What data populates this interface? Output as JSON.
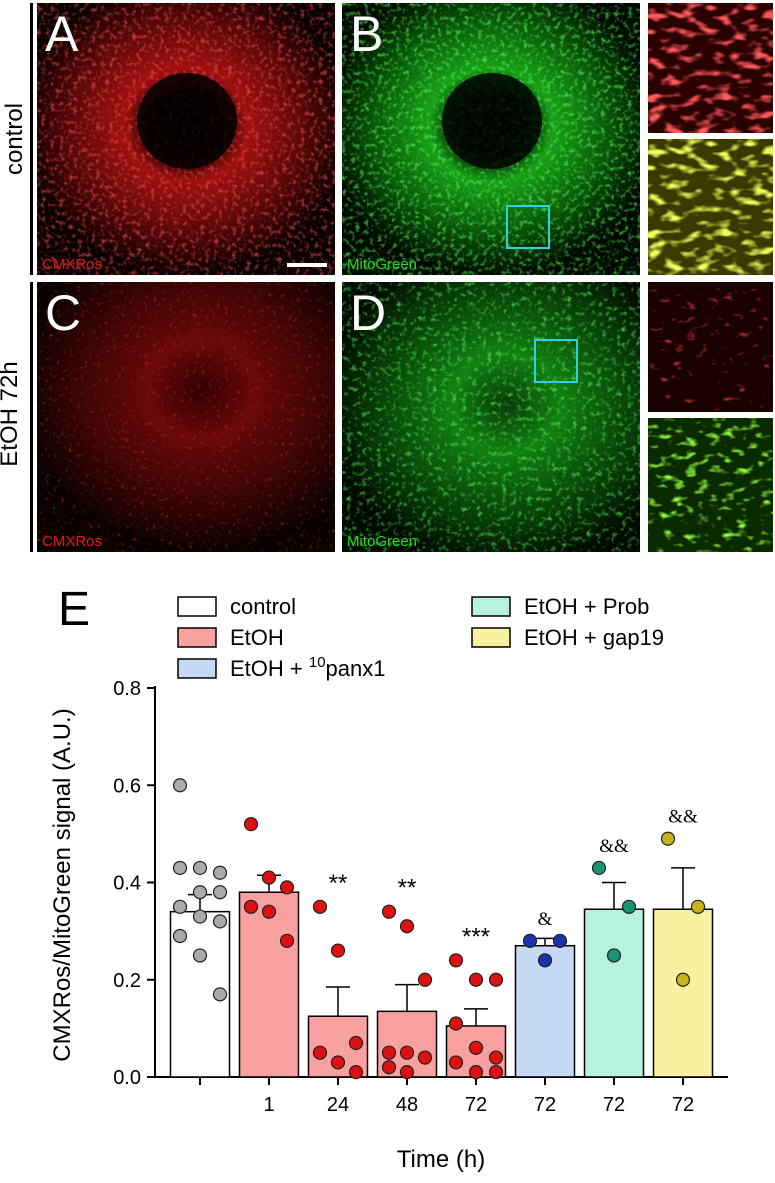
{
  "panels": [
    {
      "letter": "A",
      "channel": "CMXRos",
      "color": "#e01818"
    },
    {
      "letter": "B",
      "channel": "MitoGreen",
      "color": "#22dd22"
    },
    {
      "letter": "C",
      "channel": "CMXRos",
      "color": "#e01818"
    },
    {
      "letter": "D",
      "channel": "MitoGreen",
      "color": "#22dd22"
    }
  ],
  "row_labels": {
    "top": "control",
    "bottom": "EtOH 72h"
  },
  "chart_data": {
    "panel_letter": "E",
    "type": "bar",
    "xlabel": "Time (h)",
    "ylabel": "CMXRos/MitoGreen signal (A.U.)",
    "ylim": [
      0,
      0.8
    ],
    "yticks": [
      "0.0",
      "0.2",
      "0.4",
      "0.6",
      "0.8"
    ],
    "categories": [
      "",
      "1",
      "24",
      "48",
      "72",
      "72",
      "72",
      "72"
    ],
    "legend": [
      {
        "label": "control",
        "fill": "#ffffff"
      },
      {
        "label": "EtOH",
        "fill": "#f9a0a0"
      },
      {
        "label": "EtOH + ",
        "sup": "10",
        "label_suffix": "panx1",
        "fill": "#c5d9f5"
      },
      {
        "label": "EtOH + Prob",
        "fill": "#b6f2dc"
      },
      {
        "label": "EtOH + gap19",
        "fill": "#f8f2a0"
      }
    ],
    "bars": [
      {
        "group": "control",
        "value": 0.34,
        "sem": 0.035,
        "fill": "#ffffff",
        "dot": "#aaaaaa",
        "sig": "",
        "points": [
          0.6,
          0.43,
          0.42,
          0.43,
          0.38,
          0.38,
          0.35,
          0.33,
          0.32,
          0.29,
          0.25,
          0.17
        ]
      },
      {
        "group": "EtOH",
        "value": 0.38,
        "sem": 0.035,
        "fill": "#f9a0a0",
        "dot": "#dd1111",
        "sig": "",
        "points": [
          0.52,
          0.41,
          0.39,
          0.35,
          0.34,
          0.28
        ]
      },
      {
        "group": "EtOH",
        "value": 0.125,
        "sem": 0.06,
        "fill": "#f9a0a0",
        "dot": "#dd1111",
        "sig": "**",
        "points": [
          0.35,
          0.26,
          0.07,
          0.05,
          0.03,
          0.01
        ]
      },
      {
        "group": "EtOH",
        "value": 0.135,
        "sem": 0.055,
        "fill": "#f9a0a0",
        "dot": "#dd1111",
        "sig": "**",
        "points": [
          0.34,
          0.31,
          0.2,
          0.05,
          0.05,
          0.04,
          0.02,
          0.01
        ]
      },
      {
        "group": "EtOH",
        "value": 0.105,
        "sem": 0.035,
        "fill": "#f9a0a0",
        "dot": "#dd1111",
        "sig": "***",
        "points": [
          0.24,
          0.2,
          0.2,
          0.11,
          0.06,
          0.04,
          0.03,
          0.01,
          0.01
        ]
      },
      {
        "group": "EtOH + 10panx1",
        "value": 0.27,
        "sem": 0.015,
        "fill": "#c5d9f5",
        "dot": "#1a33aa",
        "sig": "&",
        "points": [
          0.28,
          0.28,
          0.24
        ]
      },
      {
        "group": "EtOH + Prob",
        "value": 0.345,
        "sem": 0.055,
        "fill": "#b6f2dc",
        "dot": "#1a9470",
        "sig": "&&",
        "points": [
          0.43,
          0.35,
          0.25
        ]
      },
      {
        "group": "EtOH + gap19",
        "value": 0.345,
        "sem": 0.085,
        "fill": "#f8f2a0",
        "dot": "#c7b41a",
        "sig": "&&",
        "points": [
          0.49,
          0.35,
          0.2
        ]
      }
    ]
  }
}
